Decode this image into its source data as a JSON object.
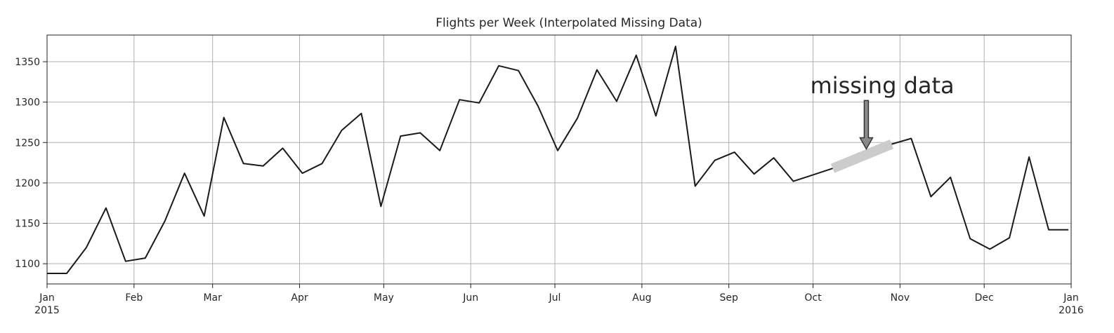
{
  "chart_data": {
    "type": "line",
    "title": "Flights per Week (Interpolated Missing Data)",
    "xlabel": "",
    "ylabel": "",
    "xlim": [
      "2015-01-01",
      "2016-01-01"
    ],
    "ylim": [
      1075,
      1383
    ],
    "grid": true,
    "x_ticks": [
      {
        "date": "2015-01-01",
        "label": "Jan",
        "sub": "2015"
      },
      {
        "date": "2015-02-01",
        "label": "Feb",
        "sub": ""
      },
      {
        "date": "2015-03-01",
        "label": "Mar",
        "sub": ""
      },
      {
        "date": "2015-04-01",
        "label": "Apr",
        "sub": ""
      },
      {
        "date": "2015-05-01",
        "label": "May",
        "sub": ""
      },
      {
        "date": "2015-06-01",
        "label": "Jun",
        "sub": ""
      },
      {
        "date": "2015-07-01",
        "label": "Jul",
        "sub": ""
      },
      {
        "date": "2015-08-01",
        "label": "Aug",
        "sub": ""
      },
      {
        "date": "2015-09-01",
        "label": "Sep",
        "sub": ""
      },
      {
        "date": "2015-10-01",
        "label": "Oct",
        "sub": ""
      },
      {
        "date": "2015-11-01",
        "label": "Nov",
        "sub": ""
      },
      {
        "date": "2015-12-01",
        "label": "Dec",
        "sub": ""
      },
      {
        "date": "2016-01-01",
        "label": "Jan",
        "sub": "2016"
      }
    ],
    "y_ticks": [
      1100,
      1150,
      1200,
      1250,
      1300,
      1350
    ],
    "series": [
      {
        "name": "",
        "color": "#1a1a1a",
        "x": [
          "2015-01-01",
          "2015-01-08",
          "2015-01-15",
          "2015-01-22",
          "2015-01-29",
          "2015-02-05",
          "2015-02-12",
          "2015-02-19",
          "2015-02-26",
          "2015-03-05",
          "2015-03-12",
          "2015-03-19",
          "2015-03-26",
          "2015-04-02",
          "2015-04-09",
          "2015-04-16",
          "2015-04-23",
          "2015-04-30",
          "2015-05-07",
          "2015-05-14",
          "2015-05-21",
          "2015-05-28",
          "2015-06-04",
          "2015-06-11",
          "2015-06-18",
          "2015-06-25",
          "2015-07-02",
          "2015-07-09",
          "2015-07-16",
          "2015-07-23",
          "2015-07-30",
          "2015-08-06",
          "2015-08-13",
          "2015-08-20",
          "2015-08-27",
          "2015-09-03",
          "2015-09-10",
          "2015-09-17",
          "2015-09-24",
          "2015-10-01",
          "2015-10-08"
        ],
        "values": [
          1088,
          1088,
          1120,
          1169,
          1103,
          1107,
          1153,
          1212,
          1159,
          1281,
          1224,
          1221,
          1243,
          1212,
          1224,
          1265,
          1286,
          1171,
          1258,
          1262,
          1240,
          1303,
          1299,
          1345,
          1339,
          1295,
          1240,
          1280,
          1340,
          1301,
          1358,
          1283,
          1369,
          1196,
          1228,
          1238,
          1211,
          1231,
          1202,
          1210,
          1218
        ]
      },
      {
        "name": "",
        "color": "#1a1a1a",
        "x": [
          "2015-10-29",
          "2015-11-05",
          "2015-11-12",
          "2015-11-19",
          "2015-11-26",
          "2015-12-03",
          "2015-12-10",
          "2015-12-17",
          "2015-12-24",
          "2015-12-31"
        ],
        "values": [
          1248,
          1255,
          1183,
          1207,
          1131,
          1118,
          1132,
          1232,
          1142,
          1142
        ]
      }
    ],
    "interpolated_segment": {
      "color": "#cccccc",
      "x": [
        "2015-10-08",
        "2015-10-29"
      ],
      "values": [
        1218,
        1248
      ]
    },
    "annotations": [
      {
        "text": "missing data",
        "text_xy": [
          "2015-09-30",
          1311
        ],
        "arrow_from": [
          "2015-10-20",
          1302
        ],
        "arrow_to": [
          "2015-10-20",
          1242
        ],
        "arrow_color": "#333333"
      }
    ]
  }
}
